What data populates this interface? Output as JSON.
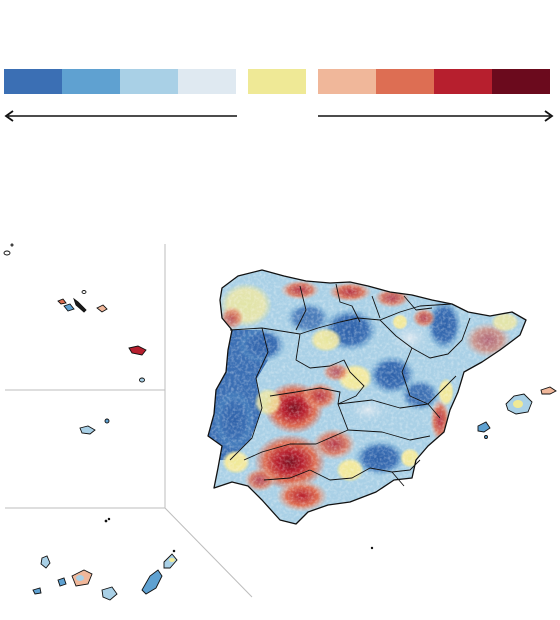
{
  "legend": {
    "swatches": [
      {
        "name": "blue-4",
        "color": "#3b6fb4"
      },
      {
        "name": "blue-3",
        "color": "#5fa1d1"
      },
      {
        "name": "blue-2",
        "color": "#a9d0e6"
      },
      {
        "name": "blue-1",
        "color": "#dfe9f1"
      },
      {
        "name": "neutral",
        "color": "#efe996"
      },
      {
        "name": "red-1",
        "color": "#f0b79a"
      },
      {
        "name": "red-2",
        "color": "#dd6e53"
      },
      {
        "name": "red-3",
        "color": "#b71f2e"
      },
      {
        "name": "red-4",
        "color": "#6b0a1d"
      }
    ]
  },
  "colors": {
    "inset_line": "#bdbdbd",
    "border": "#111111",
    "arrow": "#111111"
  }
}
